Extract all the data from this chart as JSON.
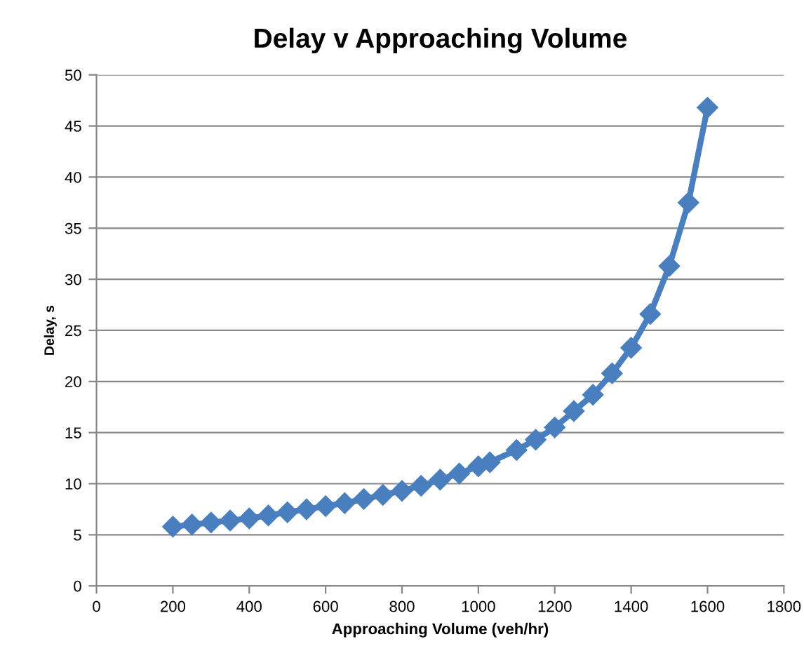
{
  "chart_data": {
    "type": "line",
    "title": "Delay v Approaching Volume",
    "xlabel": "Approaching Volume (veh/hr)",
    "ylabel": "Delay, s",
    "x": [
      200,
      250,
      300,
      350,
      400,
      450,
      500,
      550,
      600,
      650,
      700,
      750,
      800,
      850,
      900,
      950,
      1000,
      1030,
      1100,
      1150,
      1200,
      1250,
      1300,
      1350,
      1400,
      1450,
      1500,
      1550,
      1600
    ],
    "series": [
      {
        "color": "#4a7fbf",
        "values": [
          5.8,
          6.0,
          6.2,
          6.4,
          6.6,
          6.9,
          7.2,
          7.5,
          7.8,
          8.1,
          8.5,
          8.9,
          9.3,
          9.8,
          10.4,
          11.0,
          11.7,
          12.1,
          13.3,
          14.3,
          15.5,
          17.1,
          18.7,
          20.8,
          23.3,
          26.6,
          31.3,
          37.5,
          46.8
        ]
      }
    ],
    "xlim": [
      0,
      1800
    ],
    "xticks": [
      0,
      200,
      400,
      600,
      800,
      1000,
      1200,
      1400,
      1600,
      1800
    ],
    "ylim": [
      0,
      50
    ],
    "yticks": [
      0,
      5,
      10,
      15,
      20,
      25,
      30,
      35,
      40,
      45,
      50
    ],
    "grid": "y",
    "legend": false,
    "marker": "diamond",
    "line_style": "solid"
  }
}
